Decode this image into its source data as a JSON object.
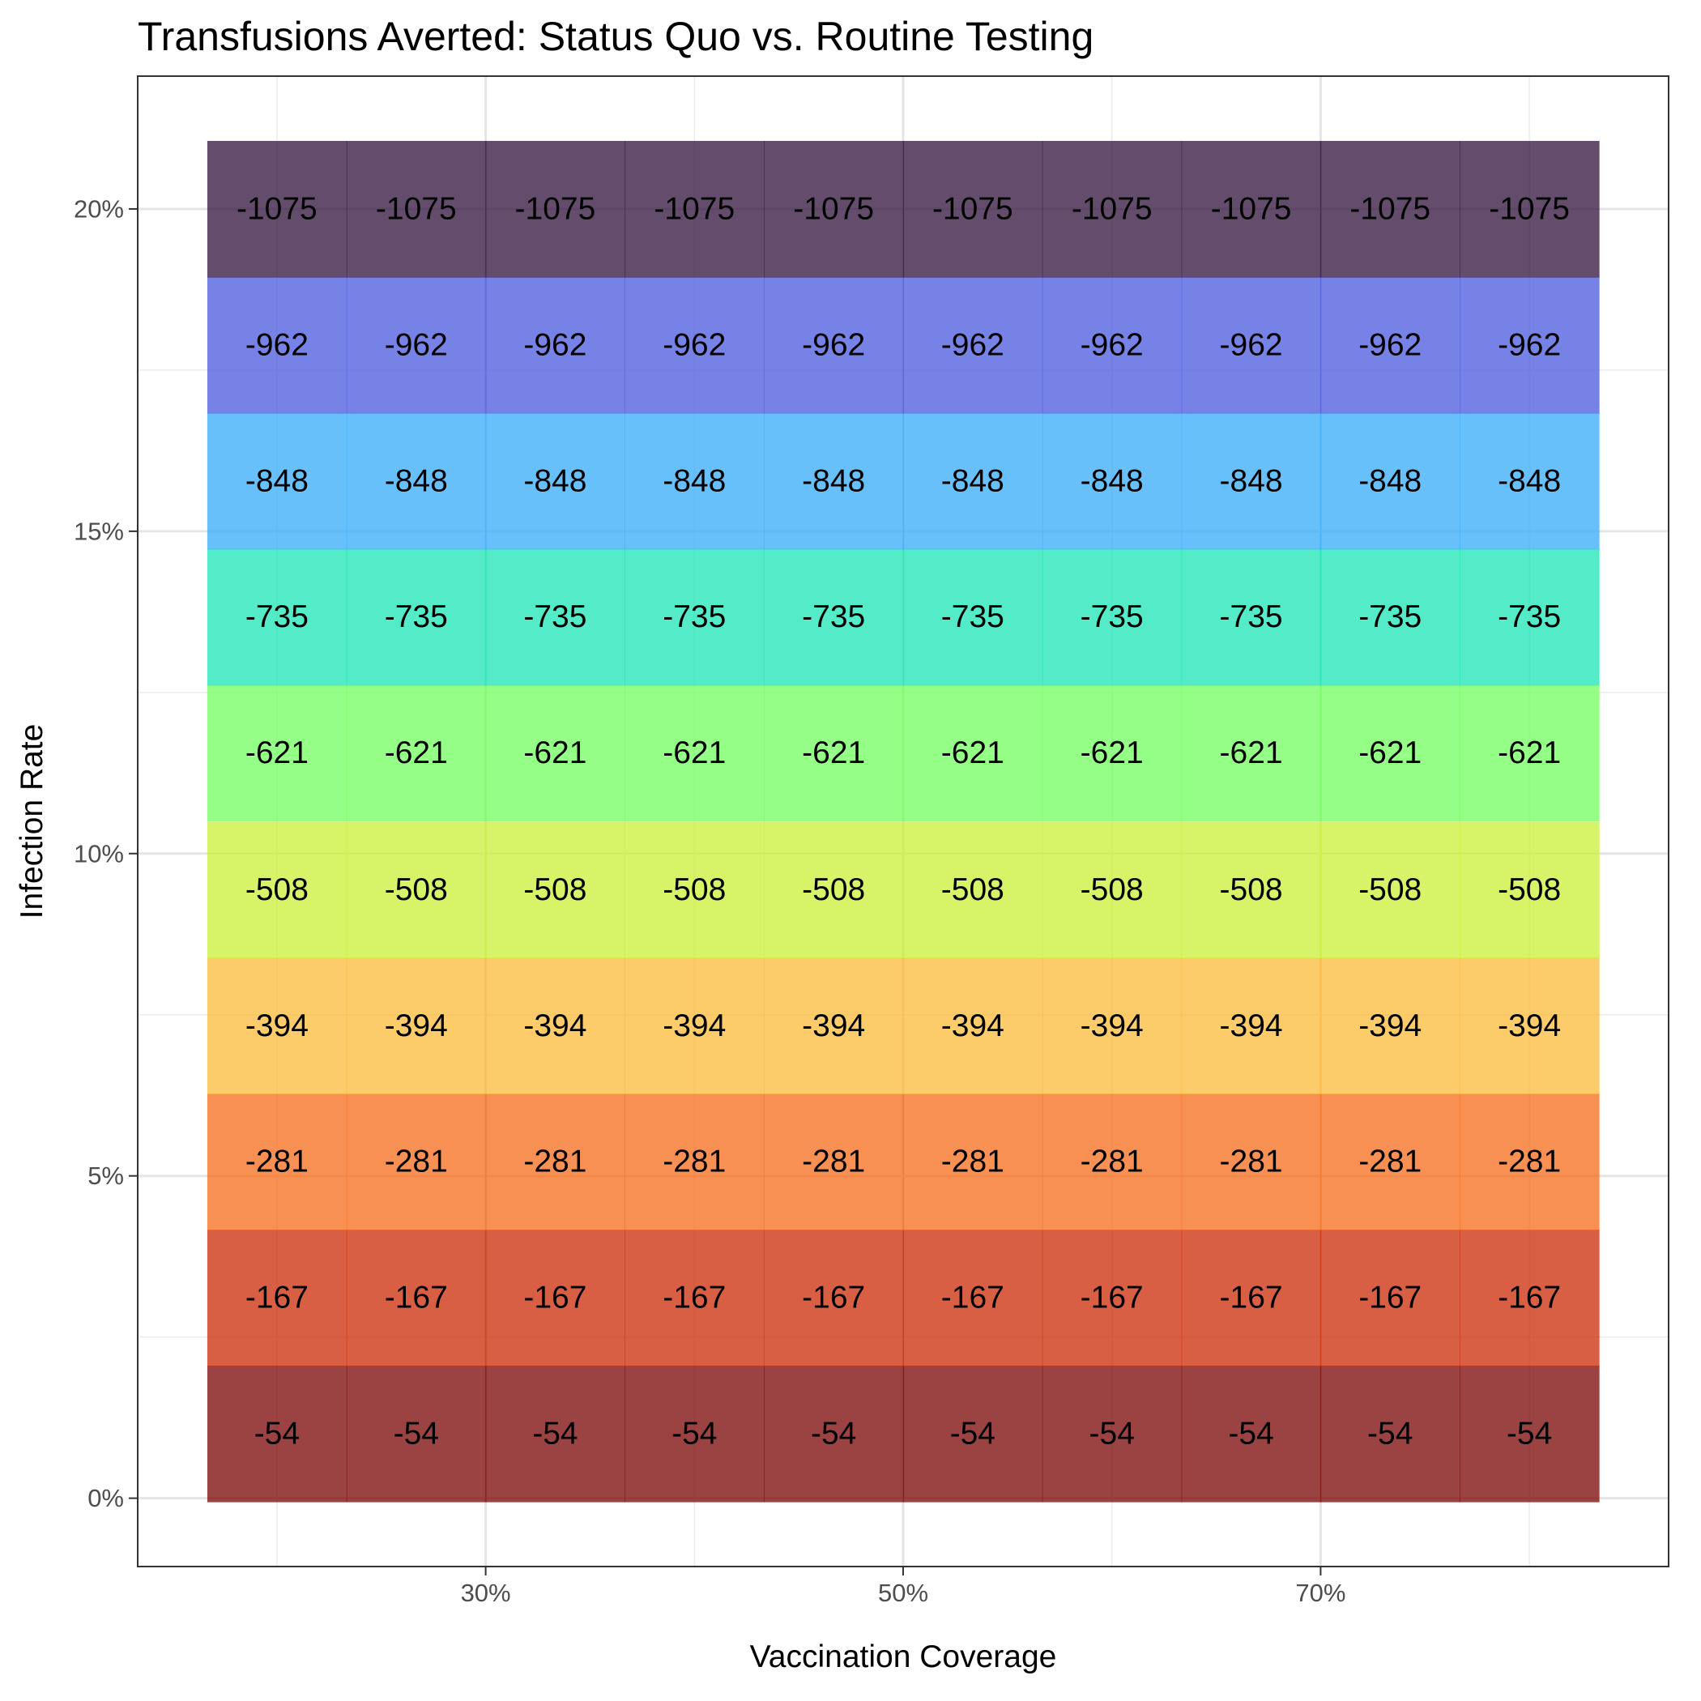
{
  "chart_data": {
    "type": "heatmap",
    "title": "Transfusions Averted: Status Quo vs. Routine Testing",
    "xlabel": "Vaccination Coverage",
    "ylabel": "Infection Rate",
    "x_ticks": [
      "30%",
      "50%",
      "70%"
    ],
    "x_tick_values": [
      30,
      50,
      70
    ],
    "y_ticks": [
      "0%",
      "5%",
      "10%",
      "15%",
      "20%"
    ],
    "y_tick_values": [
      0,
      5,
      10,
      15,
      20
    ],
    "xlim": [
      13.33,
      86.67
    ],
    "ylim": [
      -1.06,
      22.06
    ],
    "x": [
      20,
      26.67,
      33.33,
      40,
      46.67,
      53.33,
      60,
      66.67,
      73.33,
      80
    ],
    "y": [
      1,
      3.11,
      5.22,
      7.33,
      9.44,
      11.56,
      13.67,
      15.78,
      17.89,
      20
    ],
    "rows": [
      {
        "value": -54,
        "color": "#7a0403"
      },
      {
        "value": -167,
        "color": "#cb2a04"
      },
      {
        "value": -281,
        "color": "#f66b19"
      },
      {
        "value": -394,
        "color": "#fbb938"
      },
      {
        "value": -508,
        "color": "#c9ef34"
      },
      {
        "value": -621,
        "color": "#72fe5e"
      },
      {
        "value": -735,
        "color": "#1ae4b6"
      },
      {
        "value": -848,
        "color": "#35abf8"
      },
      {
        "value": -962,
        "color": "#4a58dd"
      },
      {
        "value": -1075,
        "color": "#30123b"
      }
    ],
    "tile_opacity": 0.75,
    "grid": true,
    "legend": "none"
  }
}
